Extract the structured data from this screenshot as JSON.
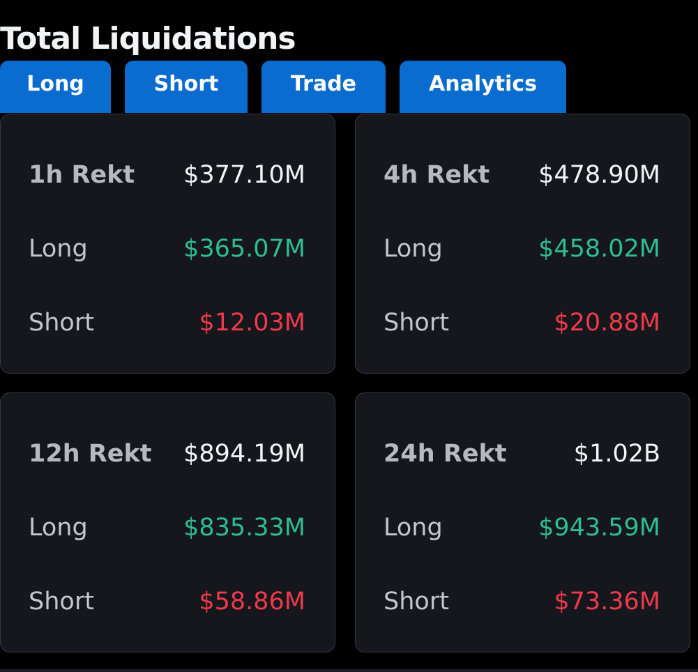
{
  "page": {
    "title": "Total Liquidations",
    "accent_color": "#0a6ccf",
    "long_color": "#2fbd8f",
    "short_color": "#ee3a4b"
  },
  "tabs": [
    {
      "label": "Long"
    },
    {
      "label": "Short"
    },
    {
      "label": "Trade"
    },
    {
      "label": "Analytics"
    }
  ],
  "cards": [
    {
      "period_label": "1h Rekt",
      "total": "$377.10M",
      "long_label": "Long",
      "long_value": "$365.07M",
      "short_label": "Short",
      "short_value": "$12.03M"
    },
    {
      "period_label": "4h Rekt",
      "total": "$478.90M",
      "long_label": "Long",
      "long_value": "$458.02M",
      "short_label": "Short",
      "short_value": "$20.88M"
    },
    {
      "period_label": "12h Rekt",
      "total": "$894.19M",
      "long_label": "Long",
      "long_value": "$835.33M",
      "short_label": "Short",
      "short_value": "$58.86M"
    },
    {
      "period_label": "24h Rekt",
      "total": "$1.02B",
      "long_label": "Long",
      "long_value": "$943.59M",
      "short_label": "Short",
      "short_value": "$73.36M"
    }
  ]
}
